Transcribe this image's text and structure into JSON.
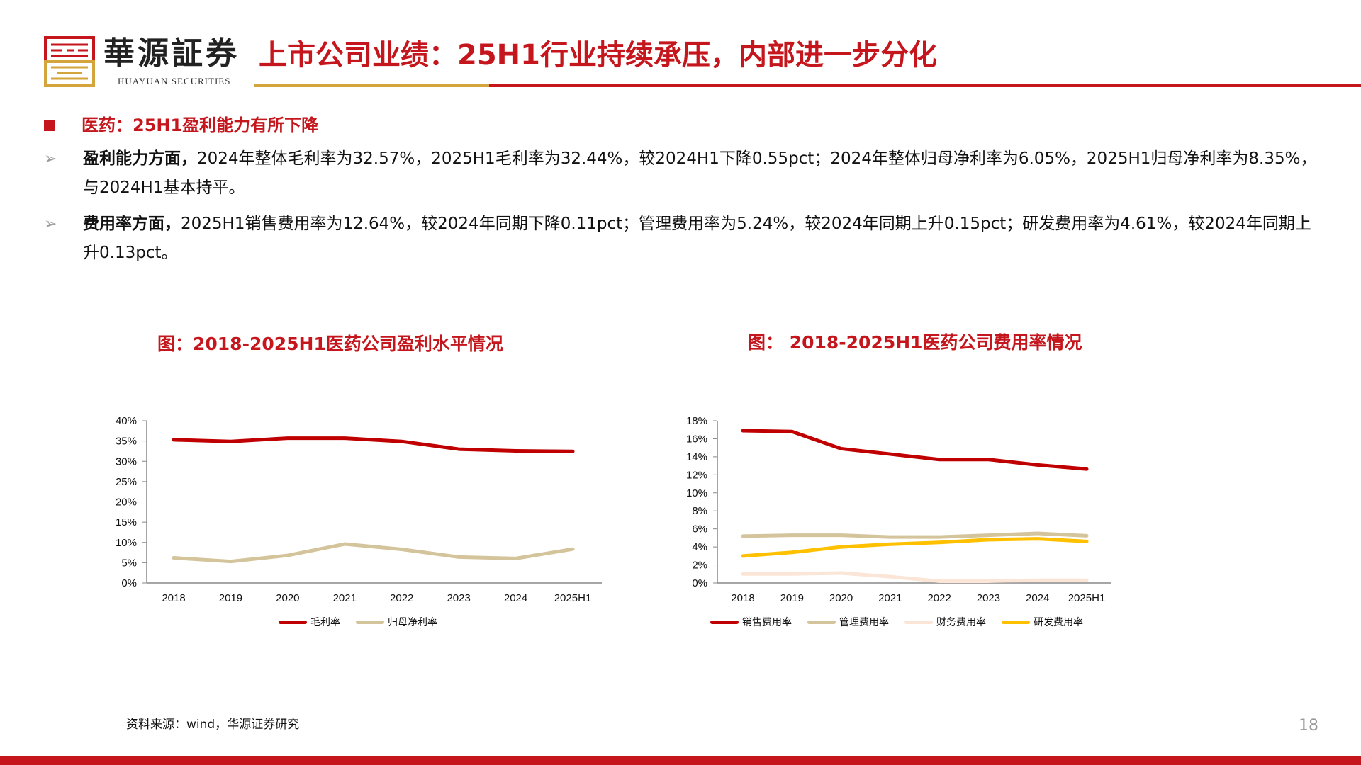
{
  "header": {
    "brand_cn": "華源証券",
    "brand_en": "HUAYUAN SECURITIES",
    "title": "上市公司业绩：25H1行业持续承压，内部进一步分化",
    "colors": {
      "red": "#c4161c",
      "gold": "#d4a53c"
    }
  },
  "section": {
    "heading": "医药：25H1盈利能力有所下降",
    "points": [
      {
        "lead": "盈利能力方面，",
        "text": "2024年整体毛利率为32.57%，2025H1毛利率为32.44%，较2024H1下降0.55pct；2024年整体归母净利率为6.05%，2025H1归母净利率为8.35%，与2024H1基本持平。"
      },
      {
        "lead": "费用率方面，",
        "text": "2025H1销售费用率为12.64%，较2024年同期下降0.11pct；管理费用率为5.24%，较2024年同期上升0.15pct；研发费用率为4.61%，较2024年同期上升0.13pct。"
      }
    ]
  },
  "chart_data": [
    {
      "type": "line",
      "title": "图：2018-2025H1医药公司盈利水平情况",
      "categories": [
        "2018",
        "2019",
        "2020",
        "2021",
        "2022",
        "2023",
        "2024",
        "2025H1"
      ],
      "ylim": [
        0,
        40
      ],
      "yticks": [
        0,
        5,
        10,
        15,
        20,
        25,
        30,
        35,
        40
      ],
      "tick_suffix": "%",
      "grid": false,
      "legend_position": "bottom",
      "series": [
        {
          "name": "毛利率",
          "color": "#c00000",
          "values": [
            35.3,
            34.9,
            35.7,
            35.7,
            34.9,
            33.0,
            32.57,
            32.44
          ]
        },
        {
          "name": "归母净利率",
          "color": "#d4c49b",
          "values": [
            6.2,
            5.3,
            6.8,
            9.6,
            8.3,
            6.4,
            6.05,
            8.35
          ]
        }
      ]
    },
    {
      "type": "line",
      "title": "图： 2018-2025H1医药公司费用率情况",
      "categories": [
        "2018",
        "2019",
        "2020",
        "2021",
        "2022",
        "2023",
        "2024",
        "2025H1"
      ],
      "ylim": [
        0,
        18
      ],
      "yticks": [
        0,
        2,
        4,
        6,
        8,
        10,
        12,
        14,
        16,
        18
      ],
      "tick_suffix": "%",
      "grid": false,
      "legend_position": "bottom",
      "series": [
        {
          "name": "销售费用率",
          "color": "#c00000",
          "values": [
            16.9,
            16.8,
            14.9,
            14.3,
            13.7,
            13.7,
            13.1,
            12.64
          ]
        },
        {
          "name": "管理费用率",
          "color": "#d4c49b",
          "values": [
            5.2,
            5.3,
            5.3,
            5.1,
            5.1,
            5.3,
            5.5,
            5.24
          ]
        },
        {
          "name": "财务费用率",
          "color": "#fbe5d6",
          "values": [
            1.0,
            1.0,
            1.1,
            0.7,
            0.2,
            0.2,
            0.3,
            0.3
          ]
        },
        {
          "name": "研发费用率",
          "color": "#ffc000",
          "values": [
            3.0,
            3.4,
            4.0,
            4.3,
            4.5,
            4.8,
            4.9,
            4.61
          ]
        }
      ]
    }
  ],
  "footer": {
    "source": "资料来源：wind，华源证券研究",
    "page": "18"
  }
}
